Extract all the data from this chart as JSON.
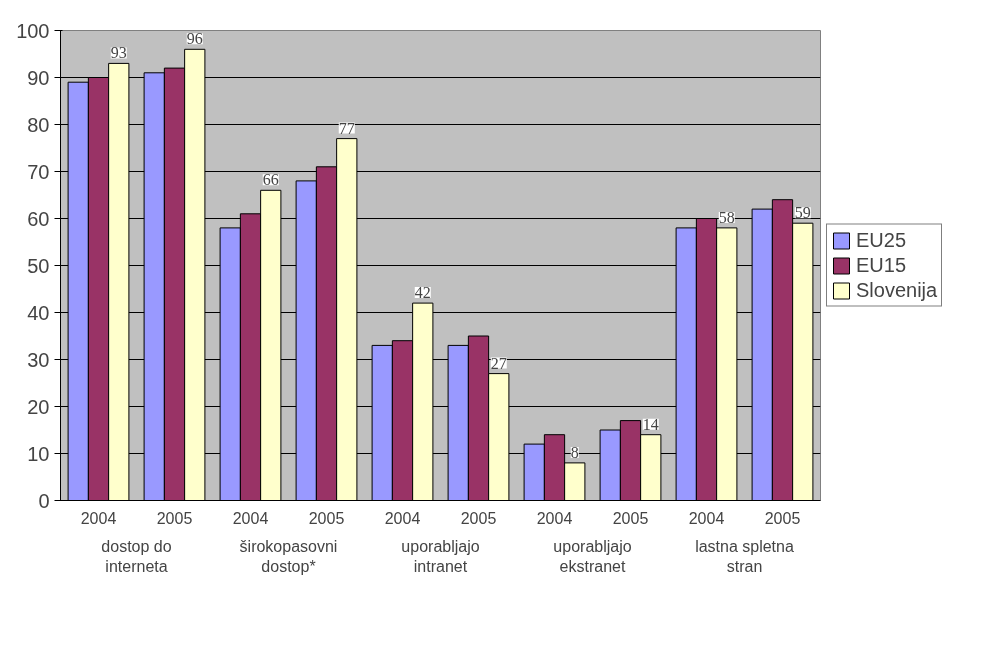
{
  "chart_data": {
    "type": "bar",
    "categories": [
      "2004",
      "2005",
      "2004",
      "2005",
      "2004",
      "2005",
      "2004",
      "2005",
      "2004",
      "2005"
    ],
    "annotations": [
      "dostop do\ninterneta",
      "širokopasovni\ndostop*",
      "uporabljajo\nintranet",
      "uporabljajo\nekstranet",
      "lastna spletna\nstran"
    ],
    "series": [
      {
        "name": "EU25",
        "color": "#9999ff",
        "values": [
          89,
          91,
          58,
          68,
          33,
          33,
          12,
          15,
          58,
          62
        ]
      },
      {
        "name": "EU15",
        "color": "#993366",
        "values": [
          90,
          92,
          61,
          71,
          34,
          35,
          14,
          17,
          60,
          64
        ]
      },
      {
        "name": "Slovenija",
        "color": "#ffffcc",
        "values": [
          93,
          96,
          66,
          77,
          42,
          27,
          8,
          14,
          58,
          59
        ],
        "value_labels": [
          "93",
          "96",
          "66",
          "77",
          "42",
          "27",
          "8",
          "14",
          "58",
          "59"
        ]
      }
    ],
    "ylim": [
      0,
      100
    ],
    "yticks": [
      0,
      10,
      20,
      30,
      40,
      50,
      60,
      70,
      80,
      90,
      100
    ],
    "grid": "y",
    "legend": "right"
  }
}
